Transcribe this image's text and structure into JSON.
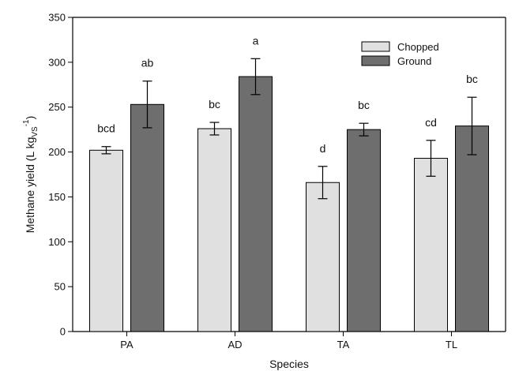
{
  "chart_data": {
    "type": "bar",
    "xlabel": "Species",
    "ylabel_main": "Methane yield (L kg",
    "ylabel_sub": "VS",
    "ylabel_sup": "-1",
    "ylabel_end": ")",
    "categories": [
      "PA",
      "AD",
      "TA",
      "TL"
    ],
    "series": [
      {
        "name": "Chopped",
        "color": "#e0e0e0",
        "values": [
          202,
          226,
          166,
          193
        ],
        "errors": [
          4,
          7,
          18,
          20
        ],
        "letters": [
          "bcd",
          "bc",
          "d",
          "cd"
        ]
      },
      {
        "name": "Ground",
        "color": "#6e6e6e",
        "values": [
          253,
          284,
          225,
          229
        ],
        "errors": [
          26,
          20,
          7,
          32
        ],
        "letters": [
          "ab",
          "a",
          "bc",
          "bc"
        ]
      }
    ],
    "ylim": [
      0,
      350
    ],
    "yticks": [
      0,
      50,
      100,
      150,
      200,
      250,
      300,
      350
    ],
    "grid": false,
    "legend_position": "top-right"
  }
}
